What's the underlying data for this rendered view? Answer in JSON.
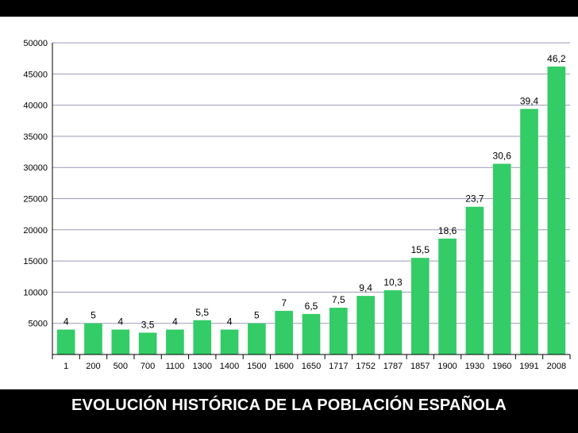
{
  "footer": {
    "title": "EVOLUCIÓN HISTÓRICA DE LA POBLACIÓN ESPAÑOLA"
  },
  "colors": {
    "bar": "#33cc66",
    "grid": "#9a9ab8",
    "axis": "#000000"
  },
  "chart_data": {
    "type": "bar",
    "categories": [
      "1",
      "200",
      "500",
      "700",
      "1100",
      "1300",
      "1400",
      "1500",
      "1600",
      "1650",
      "1717",
      "1752",
      "1787",
      "1857",
      "1900",
      "1930",
      "1960",
      "1991",
      "2008"
    ],
    "values": [
      4000,
      5000,
      4000,
      3500,
      4000,
      5500,
      4000,
      5000,
      7000,
      6500,
      7500,
      9400,
      10300,
      15500,
      18600,
      23700,
      30600,
      39400,
      46200
    ],
    "data_labels": [
      "4",
      "5",
      "4",
      "3,5",
      "4",
      "5,5",
      "4",
      "5",
      "7",
      "6,5",
      "7,5",
      "9,4",
      "10,3",
      "15,5",
      "18,6",
      "23,7",
      "30,6",
      "39,4",
      "46,2"
    ],
    "y_ticks": [
      5000,
      10000,
      15000,
      20000,
      25000,
      30000,
      35000,
      40000,
      45000,
      50000
    ],
    "ylim": [
      0,
      50000
    ],
    "grid": true,
    "title": "",
    "xlabel": "",
    "ylabel": ""
  }
}
